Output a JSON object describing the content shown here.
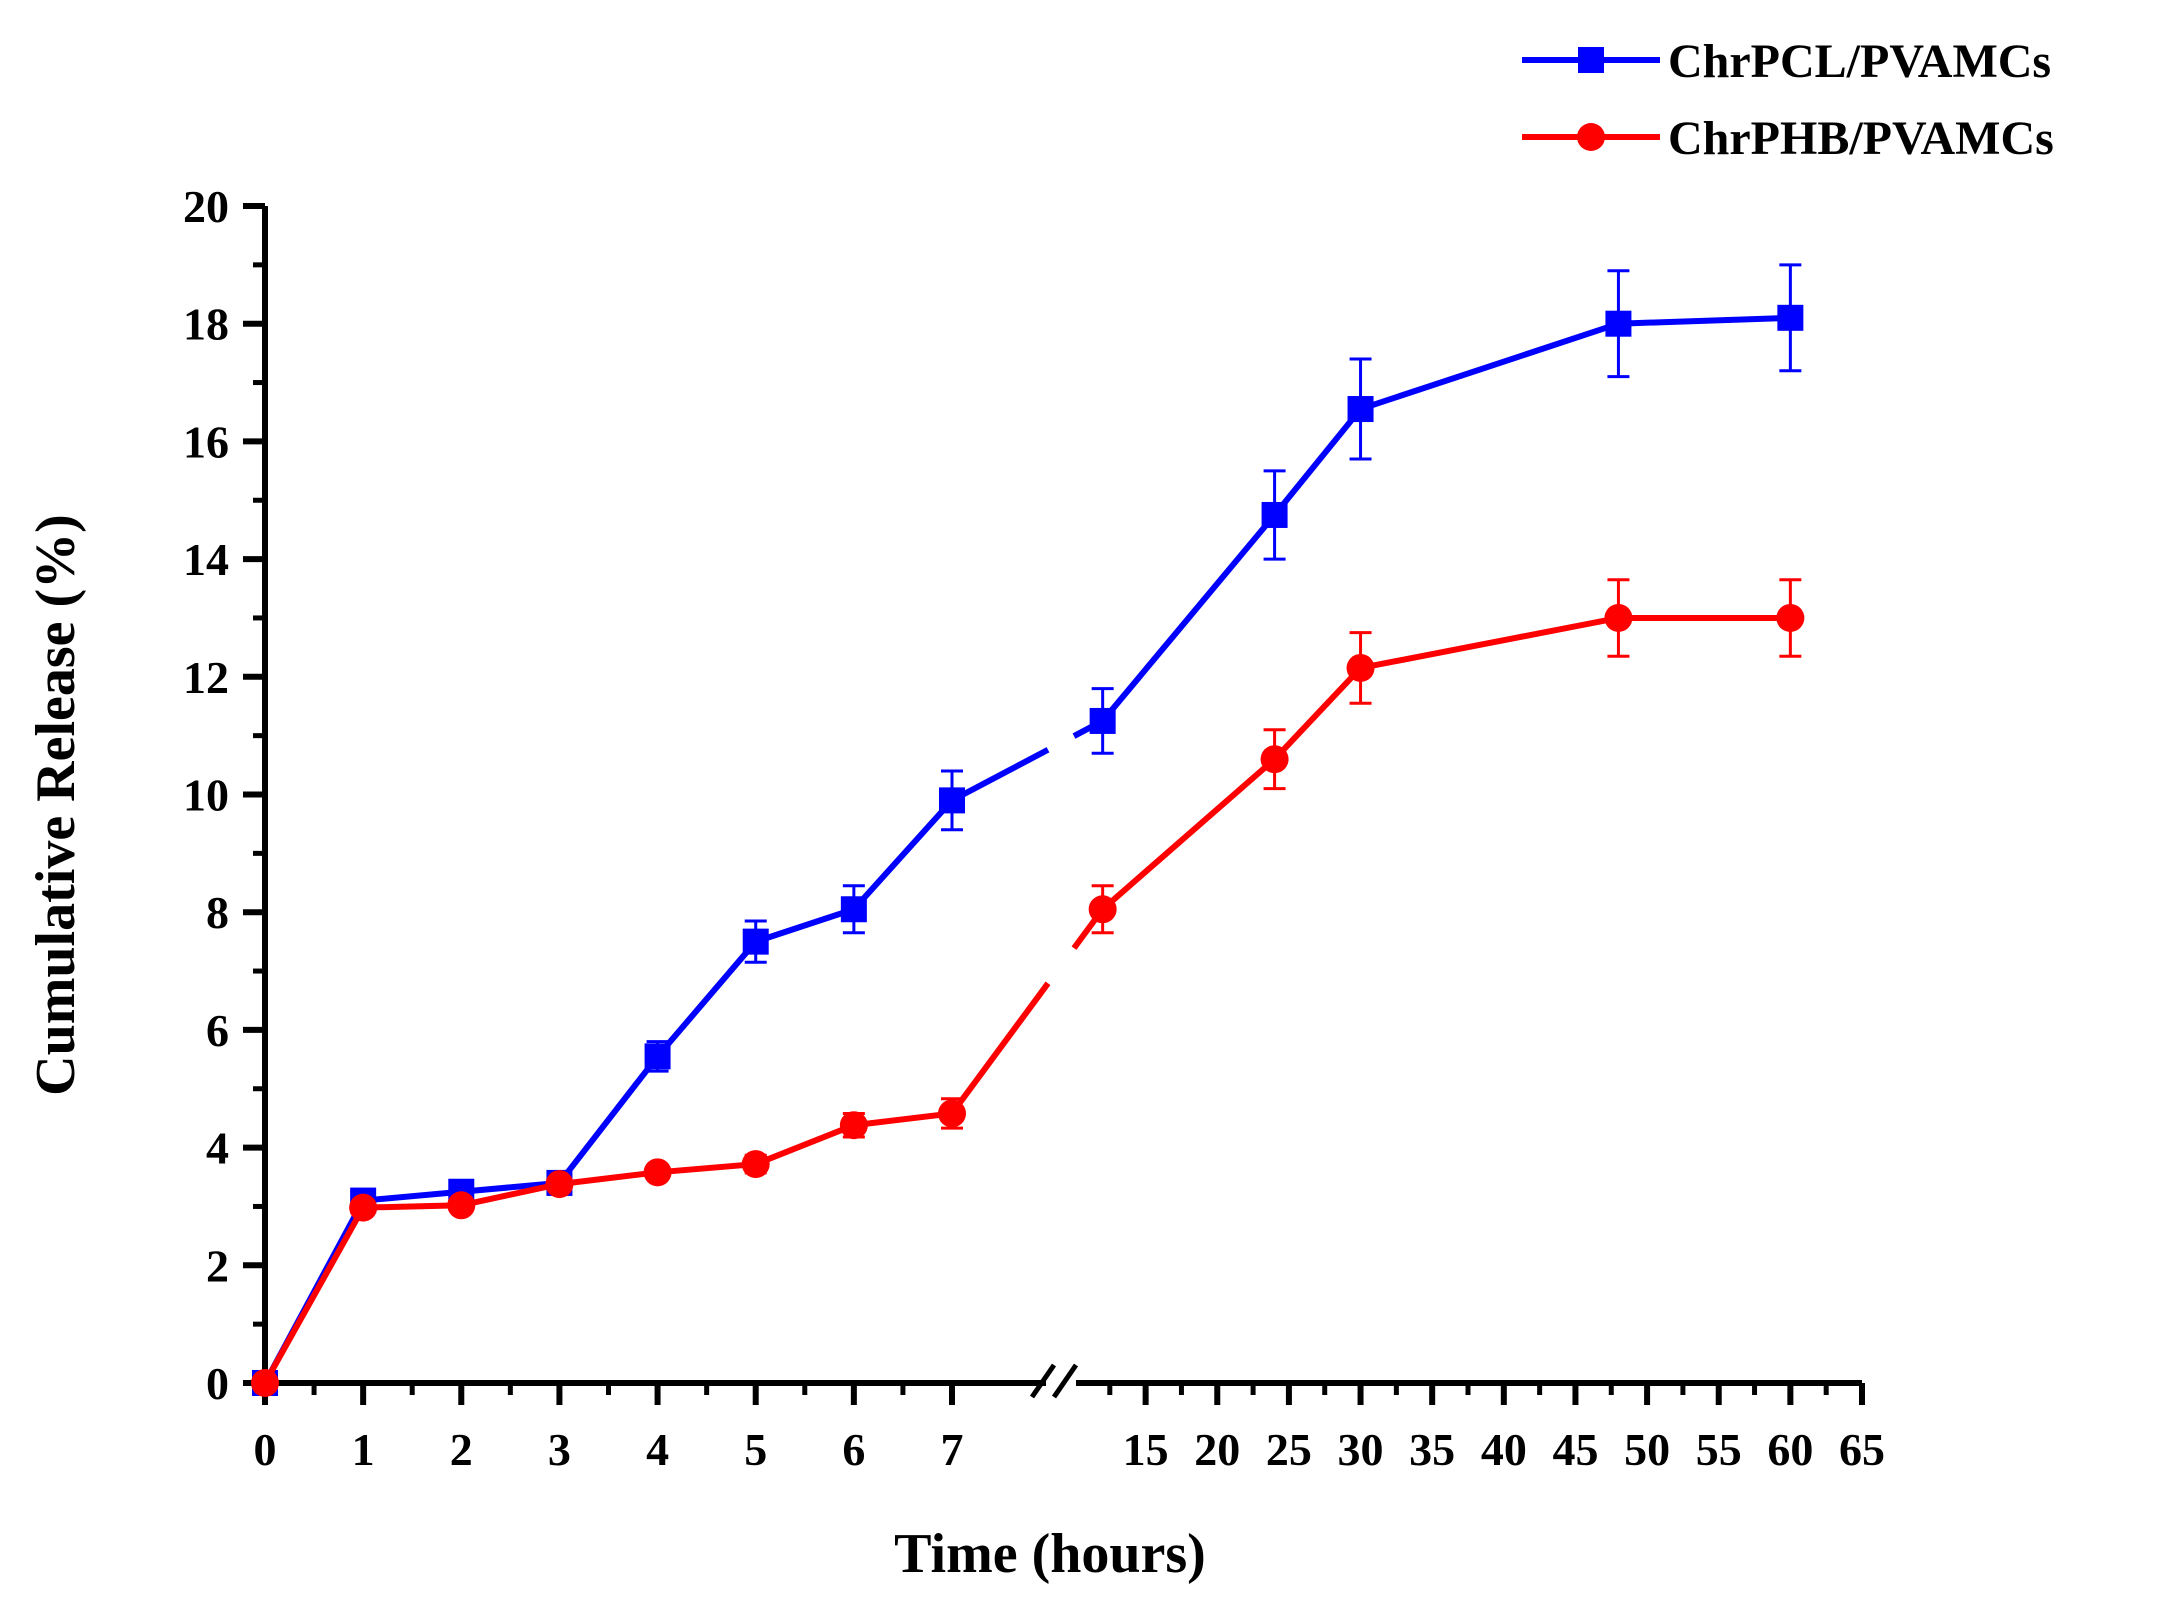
{
  "chart_data": {
    "type": "line",
    "title": "",
    "xlabel": "Time (hours)",
    "ylabel": "Cumulative Release (%)",
    "ylim": [
      0,
      20
    ],
    "y_ticks": [
      "0",
      "2",
      "4",
      "6",
      "8",
      "10",
      "12",
      "14",
      "16",
      "18",
      "20"
    ],
    "x_axis_break": true,
    "x_segment1": {
      "range": [
        0,
        7
      ],
      "ticks": [
        {
          "value": 0,
          "label": "0"
        },
        {
          "value": 1,
          "label": "1"
        },
        {
          "value": 2,
          "label": "2"
        },
        {
          "value": 3,
          "label": "3"
        },
        {
          "value": 4,
          "label": "4"
        },
        {
          "value": 5,
          "label": "5"
        },
        {
          "value": 6,
          "label": "6"
        },
        {
          "value": 7,
          "label": "7"
        }
      ]
    },
    "x_segment2": {
      "range": [
        10,
        65
      ],
      "ticks": [
        {
          "value": 15,
          "label": "15"
        },
        {
          "value": 20,
          "label": "20"
        },
        {
          "value": 25,
          "label": "25"
        },
        {
          "value": 30,
          "label": "30"
        },
        {
          "value": 35,
          "label": "35"
        },
        {
          "value": 40,
          "label": "40"
        },
        {
          "value": 45,
          "label": "45"
        },
        {
          "value": 50,
          "label": "50"
        },
        {
          "value": 55,
          "label": "55"
        },
        {
          "value": 60,
          "label": "60"
        },
        {
          "value": 65,
          "label": "65"
        }
      ]
    },
    "legend_position": "top-right",
    "series": [
      {
        "name": "ChrPCL/PVAMCs",
        "color": "#0000ff",
        "marker": "square",
        "x": [
          0,
          1,
          2,
          3,
          4,
          5,
          6,
          7,
          12,
          24,
          30,
          48,
          60
        ],
        "values": [
          0,
          3.1,
          3.25,
          3.4,
          5.55,
          7.5,
          8.05,
          9.9,
          11.25,
          14.75,
          16.55,
          18.0,
          18.1
        ],
        "errors": [
          0,
          0.1,
          0.1,
          0.1,
          0.25,
          0.35,
          0.4,
          0.5,
          0.55,
          0.75,
          0.85,
          0.9,
          0.9
        ]
      },
      {
        "name": "ChrPHB/PVAMCs",
        "color": "#ff0000",
        "marker": "circle",
        "x": [
          0,
          1,
          2,
          3,
          4,
          5,
          6,
          7,
          12,
          24,
          30,
          48,
          60
        ],
        "values": [
          0,
          2.98,
          3.02,
          3.38,
          3.58,
          3.72,
          4.38,
          4.58,
          8.05,
          10.6,
          12.15,
          13.0,
          13.0
        ],
        "errors": [
          0,
          0.1,
          0.1,
          0.1,
          0.12,
          0.15,
          0.2,
          0.25,
          0.4,
          0.5,
          0.6,
          0.65,
          0.65
        ]
      }
    ]
  }
}
